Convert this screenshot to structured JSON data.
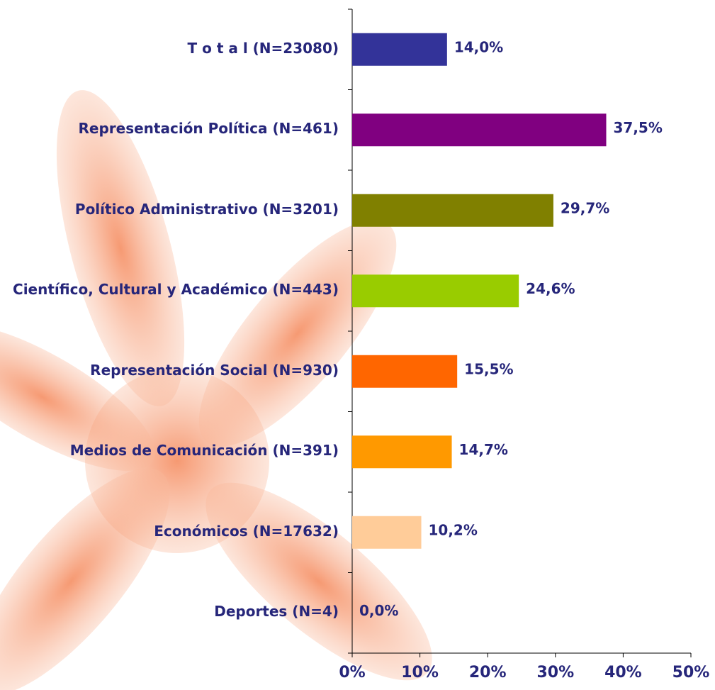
{
  "chart_data": {
    "type": "bar",
    "orientation": "horizontal",
    "categories": [
      "T o t a l (N=23080)",
      "Representación Política (N=461)",
      "Político Administrativo (N=3201)",
      "Científico, Cultural y Académico (N=443)",
      "Representación Social (N=930)",
      "Medios de Comunicación (N=391)",
      "Económicos (N=17632)",
      "Deportes (N=4)"
    ],
    "values": [
      14.0,
      37.5,
      29.7,
      24.6,
      15.5,
      14.7,
      10.2,
      0.0
    ],
    "value_labels": [
      "14,0%",
      "37,5%",
      "29,7%",
      "24,6%",
      "15,5%",
      "14,7%",
      "10,2%",
      "0,0%"
    ],
    "colors": [
      "#333399",
      "#800080",
      "#808000",
      "#99cc00",
      "#ff6600",
      "#ff9900",
      "#ffcc99",
      "#cccccc"
    ],
    "xlim": [
      0,
      50
    ],
    "xticks": [
      {
        "value": 0,
        "label": "0%"
      },
      {
        "value": 10,
        "label": "10%"
      },
      {
        "value": 20,
        "label": "20%"
      },
      {
        "value": 30,
        "label": "30%"
      },
      {
        "value": 40,
        "label": "40%"
      },
      {
        "value": 50,
        "label": "50%"
      }
    ]
  }
}
